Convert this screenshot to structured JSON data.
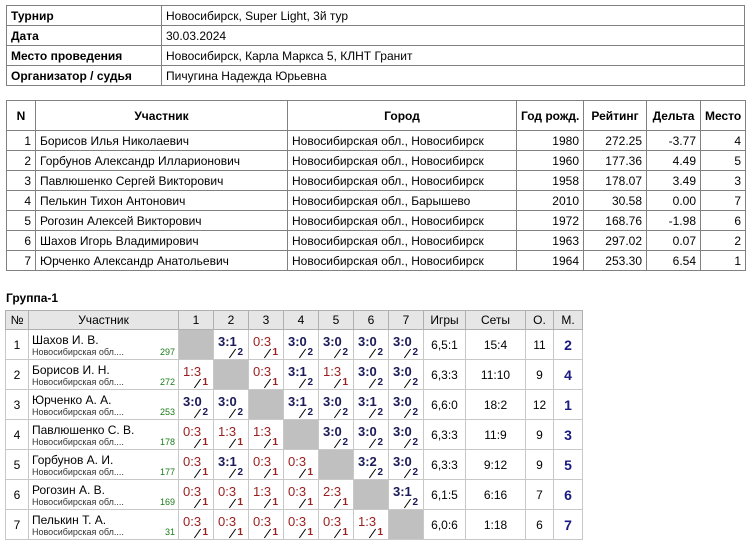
{
  "info": {
    "rows": [
      [
        "Турнир",
        "Новосибирск, Super Light, 3й тур"
      ],
      [
        "Дата",
        "30.03.2024"
      ],
      [
        "Место проведения",
        "Новосибирск, Карла Маркса 5, КЛНТ Гранит"
      ],
      [
        "Организатор / судья",
        "Пичугина Надежда Юрьевна"
      ]
    ]
  },
  "participants": {
    "headers": [
      "N",
      "Участник",
      "Город",
      "Год рожд.",
      "Рейтинг",
      "Дельта",
      "Место"
    ],
    "rows": [
      [
        "1",
        "Борисов Илья Николаевич",
        "Новосибирская обл., Новосибирск",
        "1980",
        "272.25",
        "-3.77",
        "4"
      ],
      [
        "2",
        "Горбунов Александр Илларионович",
        "Новосибирская обл., Новосибирск",
        "1960",
        "177.36",
        "4.49",
        "5"
      ],
      [
        "3",
        "Павлюшенко Сергей Викторович",
        "Новосибирская обл., Новосибирск",
        "1958",
        "178.07",
        "3.49",
        "3"
      ],
      [
        "4",
        "Пелькин Тихон Антонович",
        "Новосибирская обл., Барышево",
        "2010",
        "30.58",
        "0.00",
        "7"
      ],
      [
        "5",
        "Рогозин Алексей Викторович",
        "Новосибирская обл., Новосибирск",
        "1972",
        "168.76",
        "-1.98",
        "6"
      ],
      [
        "6",
        "Шахов Игорь Владимирович",
        "Новосибирская обл., Новосибирск",
        "1963",
        "297.02",
        "0.07",
        "2"
      ],
      [
        "7",
        "Юрченко Александр Анатольевич",
        "Новосибирская обл., Новосибирск",
        "1964",
        "253.30",
        "6.54",
        "1"
      ]
    ]
  },
  "group": {
    "title": "Группа-1",
    "headers": [
      "№",
      "Участник",
      "1",
      "2",
      "3",
      "4",
      "5",
      "6",
      "7",
      "Игры",
      "Сеты",
      "О.",
      "М."
    ],
    "rows": [
      {
        "n": "1",
        "name": "Шахов И. В.",
        "city": "Новосибирская обл....",
        "rating": "297",
        "results": [
          null,
          {
            "score": "3:1",
            "points": 2
          },
          {
            "score": "0:3",
            "points": 1
          },
          {
            "score": "3:0",
            "points": 2
          },
          {
            "score": "3:0",
            "points": 2
          },
          {
            "score": "3:0",
            "points": 2
          },
          {
            "score": "3:0",
            "points": 2
          }
        ],
        "games": "6,5:1",
        "sets": "15:4",
        "points": "11",
        "place": "2"
      },
      {
        "n": "2",
        "name": "Борисов И. Н.",
        "city": "Новосибирская обл....",
        "rating": "272",
        "results": [
          {
            "score": "1:3",
            "points": 1
          },
          null,
          {
            "score": "0:3",
            "points": 1
          },
          {
            "score": "3:1",
            "points": 2
          },
          {
            "score": "1:3",
            "points": 1
          },
          {
            "score": "3:0",
            "points": 2
          },
          {
            "score": "3:0",
            "points": 2
          }
        ],
        "games": "6,3:3",
        "sets": "11:10",
        "points": "9",
        "place": "4"
      },
      {
        "n": "3",
        "name": "Юрченко А. А.",
        "city": "Новосибирская обл....",
        "rating": "253",
        "results": [
          {
            "score": "3:0",
            "points": 2
          },
          {
            "score": "3:0",
            "points": 2
          },
          null,
          {
            "score": "3:1",
            "points": 2
          },
          {
            "score": "3:0",
            "points": 2
          },
          {
            "score": "3:1",
            "points": 2
          },
          {
            "score": "3:0",
            "points": 2
          }
        ],
        "games": "6,6:0",
        "sets": "18:2",
        "points": "12",
        "place": "1"
      },
      {
        "n": "4",
        "name": "Павлюшенко С. В.",
        "city": "Новосибирская обл....",
        "rating": "178",
        "results": [
          {
            "score": "0:3",
            "points": 1
          },
          {
            "score": "1:3",
            "points": 1
          },
          {
            "score": "1:3",
            "points": 1
          },
          null,
          {
            "score": "3:0",
            "points": 2
          },
          {
            "score": "3:0",
            "points": 2
          },
          {
            "score": "3:0",
            "points": 2
          }
        ],
        "games": "6,3:3",
        "sets": "11:9",
        "points": "9",
        "place": "3"
      },
      {
        "n": "5",
        "name": "Горбунов А. И.",
        "city": "Новосибирская обл....",
        "rating": "177",
        "results": [
          {
            "score": "0:3",
            "points": 1
          },
          {
            "score": "3:1",
            "points": 2
          },
          {
            "score": "0:3",
            "points": 1
          },
          {
            "score": "0:3",
            "points": 1
          },
          null,
          {
            "score": "3:2",
            "points": 2
          },
          {
            "score": "3:0",
            "points": 2
          }
        ],
        "games": "6,3:3",
        "sets": "9:12",
        "points": "9",
        "place": "5"
      },
      {
        "n": "6",
        "name": "Рогозин А. В.",
        "city": "Новосибирская обл....",
        "rating": "169",
        "results": [
          {
            "score": "0:3",
            "points": 1
          },
          {
            "score": "0:3",
            "points": 1
          },
          {
            "score": "1:3",
            "points": 1
          },
          {
            "score": "0:3",
            "points": 1
          },
          {
            "score": "2:3",
            "points": 1
          },
          null,
          {
            "score": "3:1",
            "points": 2
          }
        ],
        "games": "6,1:5",
        "sets": "6:16",
        "points": "7",
        "place": "6"
      },
      {
        "n": "7",
        "name": "Пелькин Т. А.",
        "city": "Новосибирская обл....",
        "rating": "31",
        "results": [
          {
            "score": "0:3",
            "points": 1
          },
          {
            "score": "0:3",
            "points": 1
          },
          {
            "score": "0:3",
            "points": 1
          },
          {
            "score": "0:3",
            "points": 1
          },
          {
            "score": "0:3",
            "points": 1
          },
          {
            "score": "1:3",
            "points": 1
          },
          null
        ],
        "games": "6,0:6",
        "sets": "1:18",
        "points": "6",
        "place": "7"
      }
    ]
  }
}
